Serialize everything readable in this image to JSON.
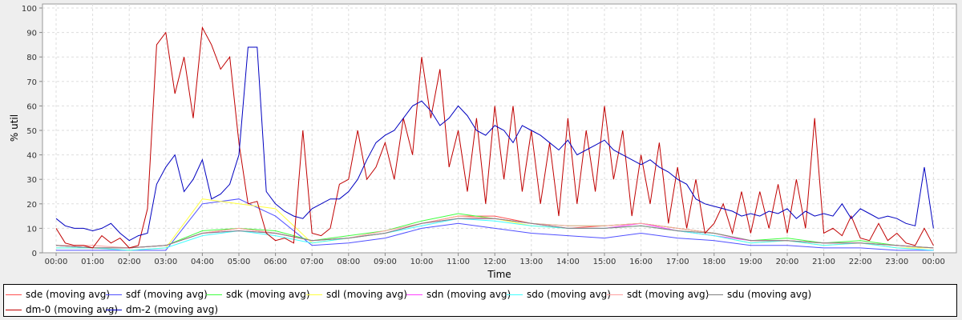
{
  "chart_data": {
    "type": "line",
    "xlabel": "Time",
    "ylabel": "% util",
    "ylim": [
      0,
      100
    ],
    "yticks": [
      0,
      10,
      20,
      30,
      40,
      50,
      60,
      70,
      80,
      90,
      100
    ],
    "xticks": [
      "00:00",
      "01:00",
      "02:00",
      "03:00",
      "04:00",
      "05:00",
      "06:00",
      "07:00",
      "08:00",
      "09:00",
      "10:00",
      "11:00",
      "12:00",
      "13:00",
      "14:00",
      "15:00",
      "16:00",
      "17:00",
      "18:00",
      "19:00",
      "20:00",
      "21:00",
      "22:00",
      "23:00",
      "00:00"
    ],
    "grid": true,
    "legend_placement": "bottom",
    "series": [
      {
        "name": "sde (moving avg)",
        "color": "#ff5050",
        "x_step_minutes": 60,
        "values": [
          3,
          2,
          2,
          3,
          8,
          10,
          8,
          5,
          6,
          8,
          12,
          15,
          15,
          12,
          10,
          11,
          12,
          10,
          8,
          5,
          5,
          4,
          4,
          3,
          2
        ]
      },
      {
        "name": "sdf (moving avg)",
        "color": "#5050ff",
        "x_step_minutes": 60,
        "values": [
          1,
          1,
          1,
          1,
          20,
          22,
          15,
          3,
          4,
          6,
          10,
          12,
          10,
          8,
          7,
          6,
          8,
          6,
          5,
          3,
          3,
          2,
          2,
          1,
          1
        ]
      },
      {
        "name": "sdk (moving avg)",
        "color": "#40ff40",
        "x_step_minutes": 60,
        "values": [
          3,
          2,
          2,
          3,
          9,
          10,
          9,
          5,
          7,
          9,
          13,
          16,
          14,
          12,
          11,
          11,
          12,
          10,
          8,
          5,
          6,
          4,
          5,
          3,
          2
        ]
      },
      {
        "name": "sdl (moving avg)",
        "color": "#ffff40",
        "x_step_minutes": 60,
        "values": [
          2,
          2,
          1,
          2,
          22,
          20,
          18,
          4,
          6,
          8,
          12,
          15,
          14,
          11,
          10,
          10,
          11,
          9,
          7,
          4,
          5,
          3,
          4,
          2,
          2
        ]
      },
      {
        "name": "sdn (moving avg)",
        "color": "#ff40ff",
        "x_step_minutes": 60,
        "values": [
          3,
          2,
          2,
          3,
          8,
          9,
          8,
          5,
          6,
          8,
          12,
          14,
          14,
          12,
          10,
          10,
          12,
          9,
          7,
          5,
          5,
          4,
          4,
          3,
          2
        ]
      },
      {
        "name": "sdo (moving avg)",
        "color": "#40ffff",
        "x_step_minutes": 60,
        "values": [
          2,
          2,
          1,
          2,
          7,
          9,
          7,
          4,
          6,
          8,
          11,
          14,
          13,
          11,
          10,
          10,
          11,
          9,
          7,
          4,
          5,
          3,
          4,
          2,
          1
        ]
      },
      {
        "name": "sdt (moving avg)",
        "color": "#ffa0a0",
        "x_step_minutes": 60,
        "values": [
          3,
          3,
          2,
          3,
          8,
          10,
          8,
          5,
          6,
          9,
          12,
          15,
          14,
          12,
          11,
          11,
          12,
          10,
          8,
          5,
          5,
          4,
          4,
          3,
          2
        ]
      },
      {
        "name": "sdu (moving avg)",
        "color": "#808080",
        "x_step_minutes": 60,
        "values": [
          3,
          2,
          2,
          3,
          8,
          9,
          8,
          5,
          6,
          8,
          12,
          14,
          14,
          12,
          10,
          10,
          11,
          9,
          8,
          5,
          5,
          4,
          4,
          3,
          2
        ]
      },
      {
        "name": "dm-0 (moving avg)",
        "color": "#c00000",
        "x_step_minutes": 15,
        "values": [
          10,
          4,
          3,
          3,
          2,
          7,
          4,
          6,
          2,
          3,
          18,
          85,
          90,
          65,
          80,
          55,
          92,
          85,
          75,
          80,
          45,
          20,
          21,
          8,
          5,
          6,
          4,
          50,
          8,
          7,
          10,
          28,
          30,
          50,
          30,
          35,
          45,
          30,
          55,
          40,
          80,
          55,
          75,
          35,
          50,
          25,
          55,
          20,
          60,
          30,
          60,
          25,
          50,
          20,
          45,
          15,
          55,
          20,
          50,
          25,
          60,
          30,
          50,
          15,
          40,
          20,
          45,
          12,
          35,
          10,
          30,
          8,
          12,
          20,
          8,
          25,
          8,
          25,
          10,
          28,
          8,
          30,
          10,
          55,
          8,
          10,
          7,
          15,
          6,
          5,
          12,
          5,
          8,
          4,
          3,
          10,
          3
        ]
      },
      {
        "name": "dm-2 (moving avg)",
        "color": "#0000c0",
        "x_step_minutes": 15,
        "values": [
          14,
          11,
          10,
          10,
          9,
          10,
          12,
          8,
          5,
          7,
          8,
          28,
          35,
          40,
          25,
          30,
          38,
          22,
          24,
          28,
          40,
          84,
          84,
          25,
          20,
          17,
          15,
          14,
          18,
          20,
          22,
          22,
          25,
          30,
          38,
          45,
          48,
          50,
          55,
          60,
          62,
          58,
          52,
          55,
          60,
          56,
          50,
          48,
          52,
          50,
          45,
          52,
          50,
          48,
          45,
          42,
          46,
          40,
          42,
          44,
          46,
          42,
          40,
          38,
          36,
          38,
          35,
          33,
          30,
          28,
          22,
          20,
          19,
          18,
          17,
          15,
          16,
          15,
          17,
          16,
          18,
          14,
          17,
          15,
          16,
          15,
          20,
          14,
          18,
          16,
          14,
          15,
          14,
          12,
          11,
          35,
          10
        ]
      }
    ]
  }
}
